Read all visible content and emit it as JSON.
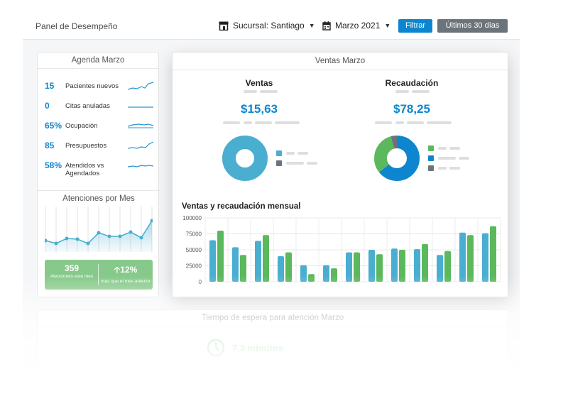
{
  "header": {
    "title": "Panel de Desempeño",
    "branch_label": "Sucursal: Santiago",
    "month_label": "Marzo 2021",
    "filter_button": "Filtrar",
    "range_button": "Últimos 30 días"
  },
  "agenda": {
    "title": "Agenda Marzo",
    "items": [
      {
        "value": "15",
        "label": "Pacientes nuevos"
      },
      {
        "value": "0",
        "label": "Citas anuladas"
      },
      {
        "value": "65%",
        "label": "Ocupación"
      },
      {
        "value": "85",
        "label": "Presupuestos"
      },
      {
        "value": "58%",
        "label": "Atendidos vs Agendados"
      }
    ]
  },
  "attentions": {
    "title": "Atenciones por Mes",
    "total_value": "359",
    "total_caption": "Atenciones este mes",
    "change_value": "12%",
    "change_caption": "más que el mes anterior"
  },
  "sales": {
    "title": "Ventas Marzo",
    "ventas_title": "Ventas",
    "ventas_value": "$15,63",
    "recaudacion_title": "Recaudación",
    "recaudacion_value": "$78,25",
    "monthly_title": "Ventas y recaudación mensual",
    "colors": {
      "ventas": "#4aaed0",
      "recaudacion": "#5cb85c",
      "blue": "#0e86cf",
      "gray": "#6b737b"
    }
  },
  "chart_data": {
    "type": "bar",
    "series": [
      {
        "values": [
          65000,
          54000,
          64000,
          40000,
          26000,
          26000,
          46000,
          50000,
          52000,
          51000,
          42000,
          77000,
          76000
        ]
      },
      {
        "values": [
          80000,
          42000,
          73000,
          46000,
          12000,
          21000,
          46000,
          43000,
          50000,
          59000,
          48000,
          73000,
          87000
        ]
      }
    ],
    "ylim": [
      0,
      100000
    ],
    "yticks": [
      0,
      25000,
      50000,
      75000,
      100000
    ],
    "grid": true
  },
  "wait": {
    "title": "Tiempo de espera para atención Marzo",
    "value": "7,2 minutos"
  }
}
